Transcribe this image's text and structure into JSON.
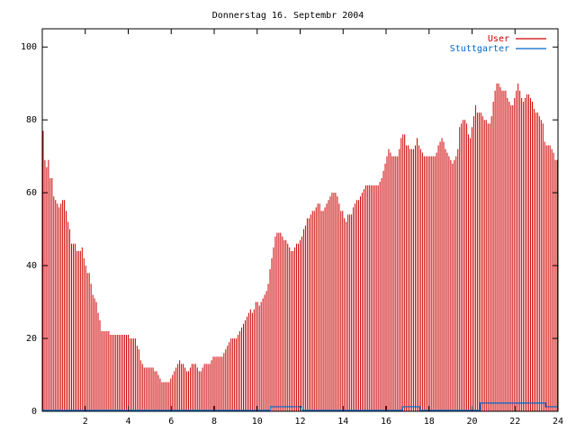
{
  "chart_data": {
    "type": "bar",
    "title": "Donnerstag 16. Septembr 2004",
    "xlabel": "",
    "ylabel": "",
    "xlim": [
      0,
      24
    ],
    "ylim": [
      0,
      105
    ],
    "x_ticks": [
      2,
      4,
      6,
      8,
      10,
      12,
      14,
      16,
      18,
      20,
      22,
      24
    ],
    "y_ticks": [
      0,
      20,
      40,
      60,
      80,
      100
    ],
    "grid": false,
    "legend_position": "top-right",
    "series": [
      {
        "name": "User",
        "color": "#cc0000",
        "style": "impulses",
        "values": [
          77,
          69,
          67,
          69,
          64,
          64,
          59,
          58,
          57,
          56,
          57,
          58,
          58,
          55,
          52,
          50,
          46,
          46,
          46,
          44,
          44,
          44,
          45,
          42,
          40,
          38,
          38,
          35,
          32,
          31,
          30,
          27,
          25,
          22,
          22,
          22,
          22,
          22,
          21,
          21,
          21,
          21,
          21,
          21,
          21,
          21,
          21,
          21,
          21,
          20,
          20,
          20,
          20,
          18,
          17,
          14,
          13,
          12,
          12,
          12,
          12,
          12,
          12,
          11,
          11,
          10,
          9,
          8,
          8,
          8,
          8,
          8,
          9,
          10,
          11,
          12,
          13,
          14,
          13,
          13,
          12,
          11,
          11,
          12,
          13,
          13,
          13,
          12,
          11,
          11,
          12,
          13,
          13,
          13,
          13,
          14,
          15,
          15,
          15,
          15,
          15,
          15,
          16,
          17,
          18,
          19,
          20,
          20,
          20,
          20,
          21,
          22,
          23,
          24,
          25,
          26,
          27,
          28,
          27,
          28,
          30,
          30,
          29,
          30,
          31,
          32,
          33,
          35,
          39,
          42,
          45,
          48,
          49,
          49,
          49,
          48,
          47,
          47,
          46,
          45,
          44,
          44,
          45,
          46,
          46,
          47,
          48,
          50,
          51,
          53,
          53,
          54,
          55,
          55,
          56,
          57,
          57,
          55,
          55,
          56,
          57,
          58,
          59,
          60,
          60,
          60,
          59,
          57,
          55,
          55,
          53,
          52,
          54,
          54,
          54,
          56,
          57,
          58,
          58,
          59,
          60,
          61,
          62,
          62,
          62,
          62,
          62,
          62,
          62,
          62,
          63,
          64,
          66,
          68,
          70,
          72,
          71,
          70,
          70,
          70,
          70,
          72,
          75,
          76,
          76,
          73,
          73,
          72,
          72,
          72,
          73,
          75,
          73,
          72,
          71,
          70,
          70,
          70,
          70,
          70,
          70,
          70,
          71,
          73,
          74,
          75,
          74,
          72,
          71,
          70,
          69,
          68,
          69,
          70,
          72,
          78,
          79,
          80,
          80,
          79,
          76,
          75,
          78,
          81,
          84,
          82,
          82,
          82,
          81,
          80,
          80,
          79,
          79,
          81,
          85,
          88,
          90,
          90,
          89,
          88,
          88,
          88,
          86,
          85,
          84,
          84,
          86,
          88,
          90,
          88,
          86,
          85,
          86,
          87,
          87,
          86,
          85,
          83,
          82,
          82,
          81,
          80,
          79,
          74,
          73,
          73,
          73,
          72,
          71,
          69,
          69
        ]
      },
      {
        "name": "Stuttgarter",
        "color": "#0066cc",
        "style": "steps",
        "values": [
          0,
          0,
          0,
          0,
          0,
          0,
          0,
          0,
          0,
          0,
          0,
          0,
          0,
          0,
          0,
          0,
          0,
          0,
          0,
          0,
          0,
          0,
          0,
          0,
          0,
          0,
          0,
          0,
          0,
          0,
          0,
          0,
          0,
          0,
          0,
          0,
          0,
          0,
          0,
          0,
          0,
          0,
          0,
          0,
          0,
          0,
          0,
          0,
          0,
          0,
          0,
          0,
          0,
          0,
          0,
          0,
          0,
          0,
          0,
          0,
          0,
          0,
          0,
          0,
          0,
          0,
          0,
          0,
          0,
          0,
          0,
          0,
          0,
          0,
          0,
          0,
          0,
          0,
          0,
          0,
          0,
          0,
          0,
          0,
          0,
          0,
          0,
          0,
          0,
          0,
          0,
          0,
          0,
          0,
          0,
          0,
          0,
          0,
          0,
          0,
          0,
          0,
          0,
          0,
          0,
          0,
          0,
          0,
          0,
          0,
          0,
          0,
          0,
          0,
          0,
          0,
          0,
          0,
          0,
          0,
          0,
          0,
          0,
          0,
          0,
          0,
          0,
          0,
          0,
          1,
          1,
          1,
          1,
          1,
          1,
          1,
          1,
          1,
          1,
          1,
          1,
          1,
          1,
          1,
          1,
          1,
          1,
          0,
          0,
          0,
          0,
          0,
          0,
          0,
          0,
          0,
          0,
          0,
          0,
          0,
          0,
          0,
          0,
          0,
          0,
          0,
          0,
          0,
          0,
          0,
          0,
          0,
          0,
          0,
          0,
          0,
          0,
          0,
          0,
          0,
          0,
          0,
          0,
          0,
          0,
          0,
          0,
          0,
          0,
          0,
          0,
          0,
          0,
          0,
          0,
          0,
          0,
          0,
          0,
          0,
          0,
          0,
          0,
          0,
          1,
          1,
          1,
          1,
          1,
          1,
          1,
          1,
          1,
          1,
          0,
          0,
          0,
          0,
          0,
          0,
          0,
          0,
          0,
          0,
          0,
          0,
          0,
          0,
          0,
          0,
          0,
          0,
          0,
          0,
          0,
          0,
          0,
          0,
          0,
          0,
          0,
          0,
          0,
          0,
          0,
          0,
          0,
          0,
          2,
          2,
          2,
          2,
          2,
          2,
          2,
          2,
          2,
          2,
          2,
          2,
          2,
          2,
          2,
          2,
          2,
          2,
          2,
          2,
          2,
          2,
          2,
          2,
          2,
          2,
          2,
          2,
          2,
          2,
          2,
          2,
          2,
          2,
          2,
          2,
          2,
          1,
          1,
          1,
          1,
          1,
          1,
          1
        ]
      }
    ]
  }
}
